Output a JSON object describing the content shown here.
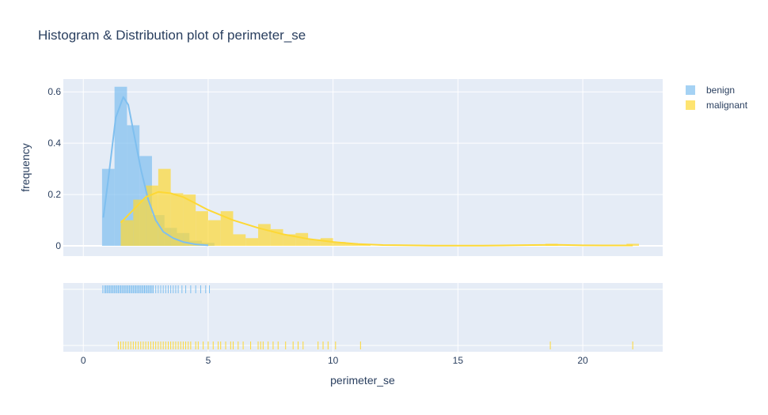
{
  "chart_data": {
    "type": "histogram",
    "title": "Histogram & Distribution plot of perimeter_se",
    "xlabel": "perimeter_se",
    "ylabel": "frequency",
    "xlim": [
      -0.8,
      23.2
    ],
    "ylim": [
      -0.04,
      0.65
    ],
    "x_ticks": [
      0,
      5,
      10,
      15,
      20
    ],
    "y_ticks": [
      0,
      0.2,
      0.4,
      0.6
    ],
    "y_tick_labels": [
      "0",
      "0.2",
      "0.4",
      "0.6"
    ],
    "grid": true,
    "legend_position": "top-right",
    "bin_width": 0.5,
    "series": [
      {
        "name": "benign",
        "color": "#7fbfef",
        "bin_starts": [
          0.75,
          1.25,
          1.75,
          2.25,
          2.75,
          3.25,
          3.75,
          4.25,
          4.75
        ],
        "bin_values": [
          0.3,
          0.62,
          0.47,
          0.35,
          0.12,
          0.07,
          0.05,
          0.02,
          0.012
        ],
        "kde_x": [
          0.8,
          1.0,
          1.3,
          1.6,
          1.8,
          2.0,
          2.3,
          2.6,
          2.9,
          3.2,
          3.6,
          4.0,
          4.5,
          5.0
        ],
        "kde_y": [
          0.11,
          0.26,
          0.5,
          0.58,
          0.55,
          0.45,
          0.3,
          0.18,
          0.1,
          0.055,
          0.03,
          0.015,
          0.006,
          0.002
        ],
        "rug": [
          0.78,
          0.85,
          0.9,
          0.95,
          1.0,
          1.05,
          1.1,
          1.15,
          1.2,
          1.25,
          1.3,
          1.35,
          1.4,
          1.45,
          1.5,
          1.55,
          1.6,
          1.65,
          1.7,
          1.75,
          1.8,
          1.85,
          1.9,
          1.95,
          2.0,
          2.05,
          2.1,
          2.15,
          2.2,
          2.25,
          2.3,
          2.35,
          2.4,
          2.45,
          2.5,
          2.55,
          2.6,
          2.65,
          2.7,
          2.75,
          2.8,
          2.9,
          3.0,
          3.1,
          3.2,
          3.3,
          3.4,
          3.5,
          3.6,
          3.7,
          3.8,
          3.95,
          4.1,
          4.3,
          4.5,
          4.7,
          4.9,
          5.05
        ]
      },
      {
        "name": "malignant",
        "color": "#fdd835",
        "bin_starts": [
          1.5,
          2.0,
          2.5,
          3.0,
          3.5,
          4.0,
          4.5,
          5.0,
          5.5,
          6.0,
          6.5,
          7.0,
          7.5,
          8.0,
          8.5,
          9.0,
          9.5,
          10.0,
          10.5,
          11.0,
          18.5,
          21.75
        ],
        "bin_values": [
          0.1,
          0.18,
          0.235,
          0.3,
          0.205,
          0.2,
          0.135,
          0.1,
          0.135,
          0.045,
          0.03,
          0.085,
          0.065,
          0.045,
          0.05,
          0.025,
          0.03,
          0.015,
          0.01,
          0.005,
          0.008,
          0.008
        ],
        "kde_x": [
          1.5,
          2.0,
          2.5,
          3.0,
          3.5,
          4.0,
          4.5,
          5.0,
          5.5,
          6.0,
          7.0,
          8.0,
          9.0,
          10.0,
          11.0,
          12.0,
          14.0,
          16.0,
          18.0,
          19.0,
          20.0,
          22.0
        ],
        "kde_y": [
          0.09,
          0.14,
          0.19,
          0.21,
          0.205,
          0.19,
          0.165,
          0.14,
          0.12,
          0.1,
          0.07,
          0.045,
          0.027,
          0.015,
          0.007,
          0.003,
          0.001,
          0.0008,
          0.003,
          0.004,
          0.002,
          0.0015
        ],
        "rug": [
          1.4,
          1.5,
          1.6,
          1.7,
          1.8,
          1.9,
          2.0,
          2.1,
          2.2,
          2.3,
          2.4,
          2.5,
          2.6,
          2.7,
          2.8,
          2.9,
          3.0,
          3.1,
          3.2,
          3.3,
          3.4,
          3.5,
          3.6,
          3.7,
          3.8,
          3.9,
          4.0,
          4.1,
          4.2,
          4.3,
          4.5,
          4.6,
          4.8,
          5.0,
          5.2,
          5.4,
          5.5,
          5.7,
          5.9,
          6.0,
          6.2,
          6.4,
          6.7,
          7.0,
          7.1,
          7.2,
          7.4,
          7.6,
          7.8,
          8.1,
          8.4,
          8.6,
          8.8,
          9.4,
          9.6,
          9.8,
          10.1,
          11.1,
          18.7,
          22.0
        ]
      }
    ]
  }
}
